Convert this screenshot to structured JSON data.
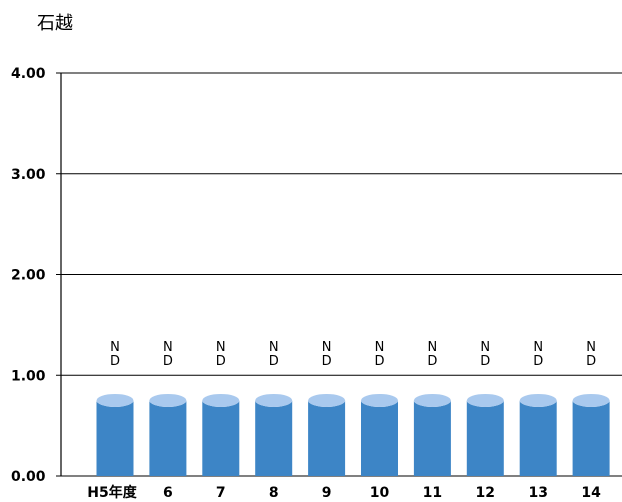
{
  "chart_data": {
    "type": "bar",
    "title": "石越",
    "categories": [
      "H5年度",
      "6",
      "7",
      "8",
      "9",
      "10",
      "11",
      "12",
      "13",
      "14"
    ],
    "values": [
      0.75,
      0.75,
      0.75,
      0.75,
      0.75,
      0.75,
      0.75,
      0.75,
      0.75,
      0.75
    ],
    "data_labels": [
      "N\nD",
      "N\nD",
      "N\nD",
      "N\nD",
      "N\nD",
      "N\nD",
      "N\nD",
      "N\nD",
      "N\nD",
      "N\nD"
    ],
    "ylim": [
      0,
      4
    ],
    "yticks": [
      "0.00",
      "1.00",
      "2.00",
      "3.00",
      "4.00"
    ],
    "grid": true,
    "bar_style": "cylinder",
    "colors": {
      "bar": "#3d85c6",
      "bar_top": "#a9c9ee"
    }
  }
}
